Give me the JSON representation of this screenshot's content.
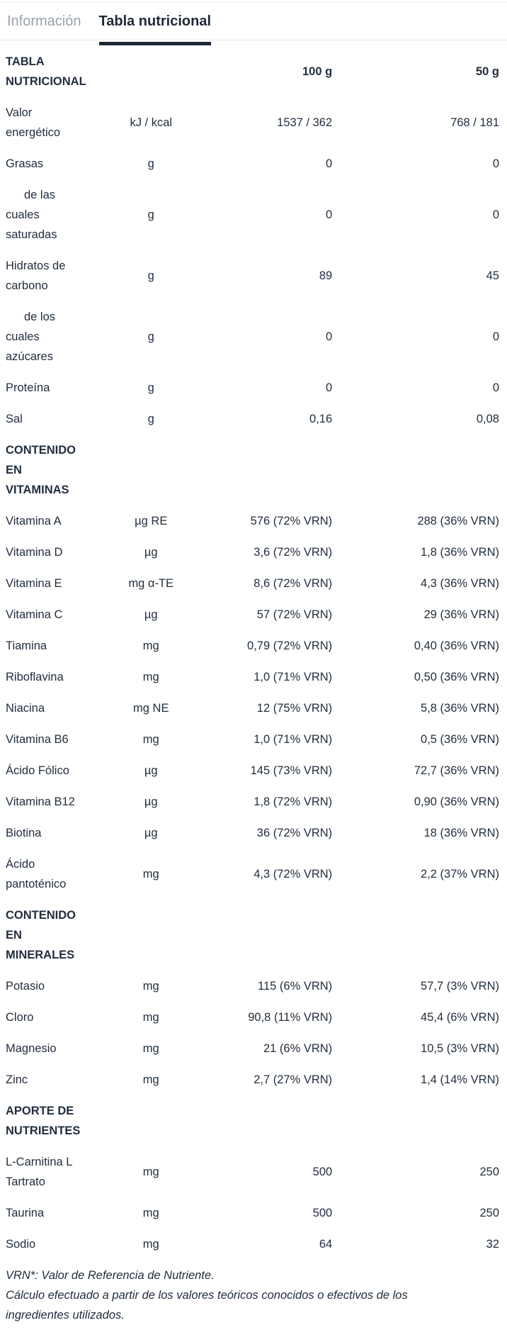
{
  "tabs": [
    {
      "label": "Información",
      "active": false
    },
    {
      "label": "Tabla nutricional",
      "active": true
    }
  ],
  "table": {
    "header": {
      "title": "TABLA NUTRICIONAL",
      "col_100g": "100 g",
      "col_50g": "50 g"
    },
    "rows": [
      {
        "type": "data",
        "label": "Valor energético",
        "unit": "kJ / kcal",
        "v100": "1537 / 362",
        "v50": "768 / 181"
      },
      {
        "type": "data",
        "label": "Grasas",
        "unit": "g",
        "v100": "0",
        "v50": "0"
      },
      {
        "type": "indent",
        "label": "de las cuales saturadas",
        "unit": "g",
        "v100": "0",
        "v50": "0"
      },
      {
        "type": "data",
        "label": "Hidratos de carbono",
        "unit": "g",
        "v100": "89",
        "v50": "45"
      },
      {
        "type": "indent",
        "label": "de los cuales azúcares",
        "unit": "g",
        "v100": "0",
        "v50": "0"
      },
      {
        "type": "data",
        "label": "Proteína",
        "unit": "g",
        "v100": "0",
        "v50": "0"
      },
      {
        "type": "data",
        "label": "Sal",
        "unit": "g",
        "v100": "0,16",
        "v50": "0,08"
      },
      {
        "type": "section",
        "label": "CONTENIDO EN VITAMINAS",
        "unit": "",
        "v100": "",
        "v50": ""
      },
      {
        "type": "data",
        "label": "Vitamina A",
        "unit": "µg RE",
        "v100": "576 (72% VRN)",
        "v50": "288 (36% VRN)"
      },
      {
        "type": "data",
        "label": "Vitamina D",
        "unit": "µg",
        "v100": "3,6 (72% VRN)",
        "v50": "1,8 (36% VRN)"
      },
      {
        "type": "data",
        "label": "Vitamina E",
        "unit": "mg α-TE",
        "v100": "8,6 (72% VRN)",
        "v50": "4,3 (36% VRN)"
      },
      {
        "type": "data",
        "label": "Vitamina C",
        "unit": "µg",
        "v100": "57 (72% VRN)",
        "v50": "29 (36% VRN)"
      },
      {
        "type": "data",
        "label": "Tiamina",
        "unit": "mg",
        "v100": "0,79 (72% VRN)",
        "v50": "0,40 (36% VRN)"
      },
      {
        "type": "data",
        "label": "Riboflavina",
        "unit": "mg",
        "v100": "1,0 (71% VRN)",
        "v50": "0,50 (36% VRN)"
      },
      {
        "type": "data",
        "label": "Niacina",
        "unit": "mg NE",
        "v100": "12 (75% VRN)",
        "v50": "5,8 (36% VRN)"
      },
      {
        "type": "data",
        "label": "Vitamina B6",
        "unit": "mg",
        "v100": "1,0 (71% VRN)",
        "v50": "0,5 (36% VRN)"
      },
      {
        "type": "data",
        "label": "Ácido Fólico",
        "unit": "µg",
        "v100": "145 (73% VRN)",
        "v50": "72,7 (36% VRN)"
      },
      {
        "type": "data",
        "label": "Vitamina B12",
        "unit": "µg",
        "v100": "1,8 (72% VRN)",
        "v50": "0,90 (36% VRN)"
      },
      {
        "type": "data",
        "label": "Biotina",
        "unit": "µg",
        "v100": "36 (72% VRN)",
        "v50": "18 (36% VRN)"
      },
      {
        "type": "data",
        "label": "Ácido pantoténico",
        "unit": "mg",
        "v100": "4,3 (72% VRN)",
        "v50": "2,2 (37% VRN)"
      },
      {
        "type": "section",
        "label": "CONTENIDO EN MINERALES",
        "unit": "",
        "v100": "",
        "v50": ""
      },
      {
        "type": "data",
        "label": "Potasio",
        "unit": "mg",
        "v100": "115 (6% VRN)",
        "v50": "57,7 (3% VRN)"
      },
      {
        "type": "data",
        "label": "Cloro",
        "unit": "mg",
        "v100": "90,8 (11% VRN)",
        "v50": "45,4 (6% VRN)"
      },
      {
        "type": "data",
        "label": "Magnesio",
        "unit": "mg",
        "v100": "21 (6% VRN)",
        "v50": "10,5 (3% VRN)"
      },
      {
        "type": "data",
        "label": "Zinc",
        "unit": "mg",
        "v100": "2,7 (27% VRN)",
        "v50": "1,4 (14% VRN)"
      },
      {
        "type": "section",
        "label": "APORTE DE NUTRIENTES",
        "unit": "",
        "v100": "",
        "v50": ""
      },
      {
        "type": "data",
        "label": "L-Carnitina L Tartrato",
        "unit": "mg",
        "v100": "500",
        "v50": "250"
      },
      {
        "type": "data",
        "label": "Taurina",
        "unit": "mg",
        "v100": "500",
        "v50": "250"
      },
      {
        "type": "data",
        "label": "Sodio",
        "unit": "mg",
        "v100": "64",
        "v50": "32"
      }
    ]
  },
  "footnotes": {
    "line1": "VRN*: Valor de Referencia de Nutriente.",
    "line2": "Cálculo efectuado a partir de los valores teóricos conocidos o efectivos de los ingredientes utilizados."
  },
  "colors": {
    "text_dark": "#222e3f",
    "text_muted": "#99a0ab",
    "active_underline": "#1d2938",
    "divider": "#e9eaed"
  }
}
